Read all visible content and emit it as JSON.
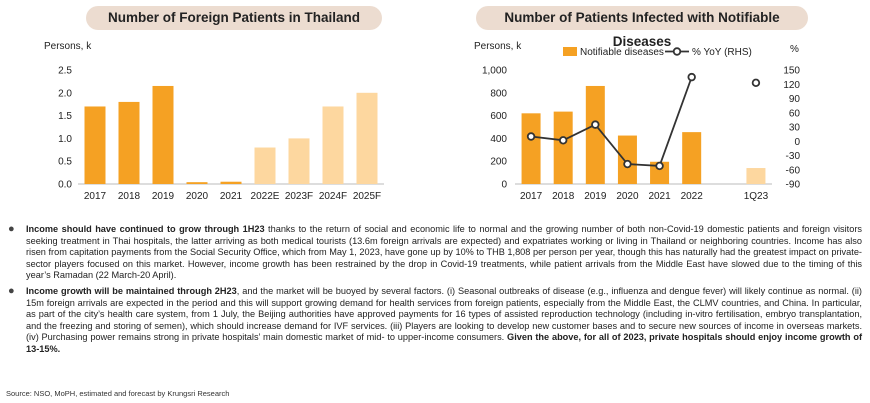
{
  "colors": {
    "bar": "#f5a123",
    "bar_forecast": "#fdd79f",
    "title_bg": "#ecdcd0",
    "line": "#333333"
  },
  "chart_data": [
    {
      "type": "bar",
      "title": "Number of Foreign Patients in Thailand",
      "ylabel": "Persons, k",
      "categories": [
        "2017",
        "2018",
        "2019",
        "2020",
        "2021",
        "2022E",
        "2023F",
        "2024F",
        "2025F"
      ],
      "values": [
        1.7,
        1.8,
        2.15,
        0.04,
        0.05,
        0.8,
        1.0,
        1.7,
        2.0
      ],
      "forecast": [
        false,
        false,
        false,
        false,
        false,
        true,
        true,
        true,
        true
      ],
      "yticks": [
        "0.0",
        "0.5",
        "1.0",
        "1.5",
        "2.0",
        "2.5"
      ],
      "ylim": [
        0,
        2.5
      ],
      "grid": false
    },
    {
      "type": "bar+line",
      "title": "Number of Patients Infected with Notifiable Diseases",
      "ylabel": "Persons, k",
      "y2label": "%",
      "categories": [
        "2017",
        "2018",
        "2019",
        "2020",
        "2021",
        "2022",
        "",
        "1Q23"
      ],
      "series": [
        {
          "name": "Notifiable diseases",
          "type": "bar",
          "axis": "left",
          "values": [
            620,
            635,
            860,
            425,
            195,
            455,
            null,
            140
          ],
          "forecast": [
            false,
            false,
            false,
            false,
            false,
            false,
            false,
            true
          ]
        },
        {
          "name": "% YoY (RHS)",
          "type": "line",
          "axis": "right",
          "values": [
            10,
            2,
            35,
            -48,
            -52,
            135,
            null,
            123
          ],
          "connected_upto": 5
        }
      ],
      "yticks": [
        "0",
        "200",
        "400",
        "600",
        "800",
        "1,000"
      ],
      "ylim": [
        0,
        1000
      ],
      "y2ticks": [
        "-90",
        "-60",
        "-30",
        "0",
        "30",
        "60",
        "90",
        "120",
        "150"
      ],
      "y2lim": [
        -90,
        150
      ],
      "legend": "top",
      "grid": false
    }
  ],
  "text": {
    "bullet1_bold": "Income should have continued to grow through 1H23",
    "bullet1_rest": " thanks to the return of social and economic life to normal and the growing number of both non-Covid-19 domestic patients and foreign visitors seeking treatment in Thai hospitals, the latter arriving as both medical tourists (13.6m foreign arrivals are expected) and expatriates working or living in Thailand or neighboring countries. Income has also risen from capitation payments from the Social Security Office, which from May 1, 2023, have gone up by 10% to THB 1,808 per person per year, though this has naturally had the greatest impact on private-sector players focused on this market. However, income growth has been restrained by the drop in Covid-19 treatments, while patient arrivals from the Middle East have slowed due to the timing of this year’s Ramadan (22 March-20 April).",
    "bullet2_bold": "Income growth will be maintained through 2H23",
    "bullet2_rest": ", and the market will be buoyed by several factors. (i) Seasonal outbreaks of disease (e.g., influenza and dengue fever) will likely continue as normal. (ii) 15m foreign arrivals are expected in the period and this will support growing demand for health services from foreign patients, especially from the Middle East, the CLMV countries, and China. In particular, as part of the city’s health care system, from 1 July, the Beijing authorities have approved payments for 16 types of assisted reproduction technology (including in-vitro fertilisation, embryo transplantation, and the freezing and storing of semen), which should increase demand for IVF services. (iii) Players are looking to develop new customer bases and to secure new sources of income in overseas markets. (iv) Purchasing power remains strong in private hospitals’ main domestic market of mid- to upper-income consumers. ",
    "bullet2_bold_end": "Given the above, for all of 2023, private hospitals should enjoy income growth of 13-15%.",
    "bullet_symbol": "●",
    "source": "Source: NSO, MoPH,  estimated and forecast by Krungsri Research"
  }
}
